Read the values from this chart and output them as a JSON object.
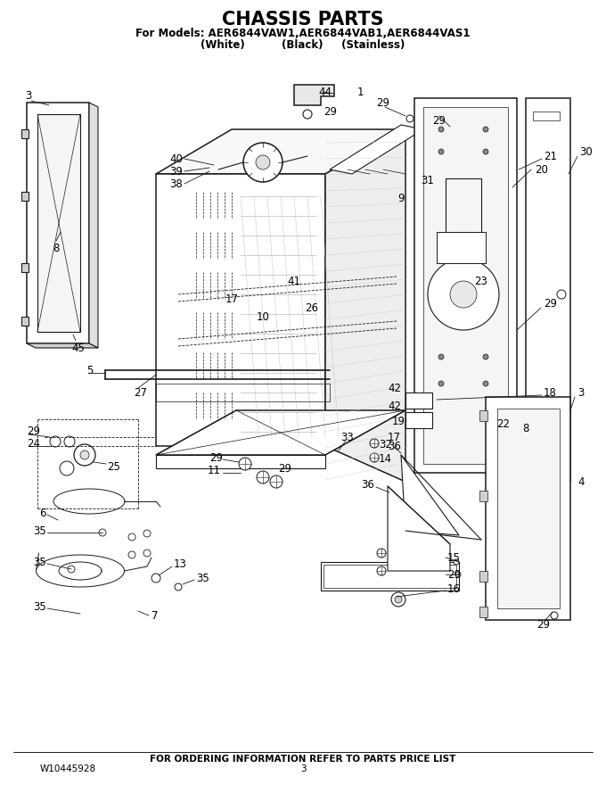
{
  "title": "CHASSIS PARTS",
  "subtitle": "For Models: AER6844VAW1,AER6844VAB1,AER6844VAS1",
  "subtitle2": "(White)          (Black)     (Stainless)",
  "footer1": "FOR ORDERING INFORMATION REFER TO PARTS PRICE LIST",
  "footer2_left": "W10445928",
  "footer2_center": "3",
  "bg_color": "#ffffff",
  "line_color": "#1a1a1a",
  "title_fontsize": 15,
  "subtitle_fontsize": 9,
  "footer_fontsize": 7.5,
  "label_fontsize": 8.5,
  "page_width": 6.8,
  "page_height": 8.8
}
